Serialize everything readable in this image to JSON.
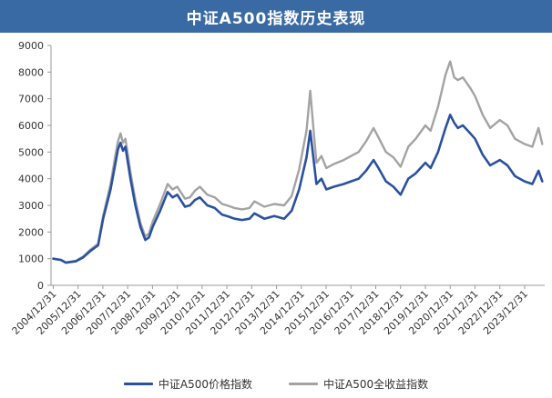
{
  "chart_data": {
    "type": "line",
    "title": "中证A500指数历史表现",
    "ylim": [
      0,
      9000
    ],
    "yticks": [
      0,
      1000,
      2000,
      3000,
      4000,
      5000,
      6000,
      7000,
      8000,
      9000
    ],
    "x_tick_labels": [
      "2004/12/31",
      "2005/12/31",
      "2006/12/31",
      "2007/12/31",
      "2008/12/31",
      "2009/12/31",
      "2010/12/31",
      "2011/12/31",
      "2012/12/31",
      "2013/12/31",
      "2014/12/31",
      "2015/12/31",
      "2016/12/31",
      "2017/12/31",
      "2018/12/31",
      "2019/12/31",
      "2020/12/31",
      "2021/12/31",
      "2022/12/31",
      "2023/12/31"
    ],
    "grid": false,
    "legend_position": "bottom",
    "x_years": [
      2004.99,
      2005.3,
      2005.5,
      2005.9,
      2006.2,
      2006.5,
      2006.8,
      2007.0,
      2007.3,
      2007.5,
      2007.6,
      2007.7,
      2007.8,
      2007.9,
      2008.1,
      2008.3,
      2008.5,
      2008.7,
      2008.85,
      2009.0,
      2009.3,
      2009.6,
      2009.8,
      2009.99,
      2010.3,
      2010.5,
      2010.7,
      2010.9,
      2011.2,
      2011.5,
      2011.8,
      2011.99,
      2012.3,
      2012.6,
      2012.9,
      2013.1,
      2013.5,
      2013.9,
      2014.3,
      2014.6,
      2014.9,
      2015.2,
      2015.35,
      2015.45,
      2015.6,
      2015.8,
      2016.0,
      2016.3,
      2016.7,
      2016.99,
      2017.3,
      2017.6,
      2017.9,
      2018.1,
      2018.4,
      2018.7,
      2018.99,
      2019.3,
      2019.6,
      2019.99,
      2020.2,
      2020.5,
      2020.8,
      2020.99,
      2021.15,
      2021.3,
      2021.5,
      2021.8,
      2021.99,
      2022.3,
      2022.6,
      2022.99,
      2023.3,
      2023.6,
      2023.99,
      2024.3,
      2024.55,
      2024.7
    ],
    "series": [
      {
        "name": "中证A500价格指数",
        "color": "#2a51a0",
        "values": [
          1000,
          950,
          850,
          900,
          1050,
          1300,
          1500,
          2500,
          3600,
          4600,
          5100,
          5350,
          5050,
          5200,
          4000,
          3000,
          2200,
          1700,
          1800,
          2200,
          2800,
          3500,
          3300,
          3400,
          2950,
          3000,
          3200,
          3300,
          3000,
          2900,
          2650,
          2600,
          2500,
          2450,
          2500,
          2700,
          2500,
          2600,
          2500,
          2800,
          3600,
          4800,
          5800,
          5000,
          3800,
          4000,
          3600,
          3700,
          3800,
          3900,
          4000,
          4300,
          4700,
          4400,
          3900,
          3700,
          3400,
          4000,
          4200,
          4600,
          4400,
          5000,
          5900,
          6400,
          6100,
          5900,
          6000,
          5700,
          5500,
          4900,
          4500,
          4700,
          4500,
          4100,
          3900,
          3800,
          4300,
          3900
        ]
      },
      {
        "name": "中证A500全收益指数",
        "color": "#a3a3a3",
        "values": [
          1000,
          960,
          860,
          920,
          1080,
          1350,
          1560,
          2600,
          3800,
          4900,
          5400,
          5700,
          5350,
          5500,
          4250,
          3200,
          2350,
          1830,
          1950,
          2400,
          3050,
          3800,
          3600,
          3700,
          3250,
          3300,
          3550,
          3700,
          3400,
          3300,
          3050,
          3000,
          2900,
          2850,
          2900,
          3150,
          2950,
          3050,
          3000,
          3350,
          4350,
          5800,
          7300,
          6200,
          4600,
          4850,
          4400,
          4550,
          4700,
          4850,
          5000,
          5400,
          5900,
          5550,
          5000,
          4800,
          4450,
          5200,
          5500,
          6000,
          5800,
          6700,
          7900,
          8400,
          7800,
          7700,
          7800,
          7400,
          7100,
          6400,
          5900,
          6200,
          6000,
          5500,
          5300,
          5200,
          5900,
          5300
        ]
      }
    ]
  },
  "legend": {
    "items": [
      {
        "label": "中证A500价格指数",
        "color": "#2a51a0"
      },
      {
        "label": "中证A500全收益指数",
        "color": "#a3a3a3"
      }
    ]
  }
}
